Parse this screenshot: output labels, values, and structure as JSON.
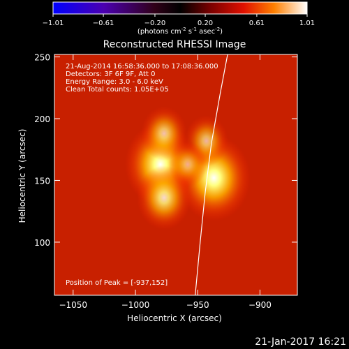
{
  "colorbar": {
    "ticks": [
      "-1.01",
      "-0.61",
      "-0.20",
      "0.20",
      "0.61",
      "1.01"
    ],
    "units_prefix": "(photons cm",
    "units_sup1": "-2",
    "units_mid": " s",
    "units_sup2": "-1",
    "units_suffix": " asec",
    "units_sup3": "-2",
    "units_close": ")",
    "min": -1.01,
    "max": 1.01,
    "colormap": "red-temperature with negative blue-purple"
  },
  "chart_data": {
    "type": "heatmap",
    "title": "Reconstructed RHESSI Image",
    "xlabel": "Heliocentric X (arcsec)",
    "ylabel": "Heliocentric Y (arcsec)",
    "xlim": [
      -1065,
      -870
    ],
    "ylim": [
      57,
      252
    ],
    "xticks": [
      {
        "value": -1050,
        "label": "−1050"
      },
      {
        "value": -1000,
        "label": "−1000"
      },
      {
        "value": -950,
        "label": "−950"
      },
      {
        "value": -900,
        "label": "−900"
      }
    ],
    "yticks": [
      {
        "value": 250,
        "label": "250"
      },
      {
        "value": 200,
        "label": "200"
      },
      {
        "value": 150,
        "label": "150"
      },
      {
        "value": 100,
        "label": "100"
      }
    ],
    "annotations": [
      "21-Aug-2014 16:58:36.000 to 17:08:36.000",
      "Detectors: 3F 6F 9F, Att 0",
      "Energy Range: 3.0 - 6.0 keV",
      "Clean    Total counts: 1.05E+05"
    ],
    "peak_label": "Position of Peak = [-937,152]",
    "sources": [
      {
        "x": -937,
        "y": 152,
        "intensity": 1.0
      },
      {
        "x": -980,
        "y": 163,
        "intensity": 0.95
      },
      {
        "x": -977,
        "y": 136,
        "intensity": 0.62
      },
      {
        "x": -977,
        "y": 188,
        "intensity": 0.45
      },
      {
        "x": -943,
        "y": 182,
        "intensity": 0.4
      },
      {
        "x": -958,
        "y": 163,
        "intensity": 0.3
      }
    ],
    "limb": [
      [
        -952,
        57
      ],
      [
        -948,
        100
      ],
      [
        -944,
        140
      ],
      [
        -939,
        180
      ],
      [
        -932,
        220
      ],
      [
        -926,
        252
      ]
    ]
  },
  "footer_date": "21-Jan-2017 16:21"
}
